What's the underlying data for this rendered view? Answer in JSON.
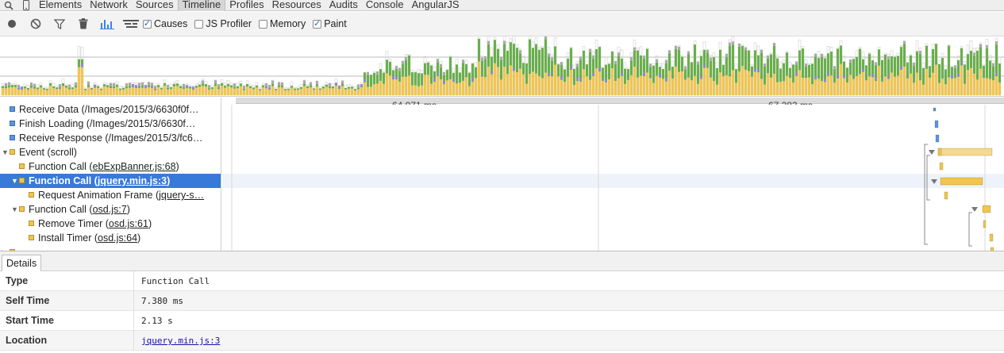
{
  "tabs": {
    "items": [
      "Elements",
      "Network",
      "Sources",
      "Timeline",
      "Profiles",
      "Resources",
      "Audits",
      "Console",
      "AngularJS"
    ],
    "active": "Timeline",
    "search_icon": "search-icon",
    "device_icon": "mobile-device-icon"
  },
  "toolbar": {
    "record_icon": "record-icon",
    "clear_icon": "clear-icon",
    "filter_icon": "filter-icon",
    "trash_icon": "trash-icon",
    "bars_view_icon": "bars-view-icon",
    "flame_view_icon": "flamechart-view-icon",
    "checkboxes": [
      {
        "label": "Causes",
        "checked": true
      },
      {
        "label": "JS Profiler",
        "checked": false
      },
      {
        "label": "Memory",
        "checked": false
      },
      {
        "label": "Paint",
        "checked": true
      }
    ]
  },
  "ruler": {
    "labels": [
      "64.071 ms",
      "67.283 ms"
    ]
  },
  "tree": {
    "rows": [
      {
        "text": "Receive Data (/Images/2015/3/6630f0f…",
        "depth": 0,
        "color": "#5a96e0",
        "triangle": "",
        "link": "",
        "selected": false
      },
      {
        "text": "Finish Loading (/Images/2015/3/6630f…",
        "depth": 0,
        "color": "#5a96e0",
        "triangle": "",
        "link": "",
        "selected": false
      },
      {
        "text": "Receive Response (/Images/2015/3/fc6…",
        "depth": 0,
        "color": "#5a96e0",
        "triangle": "",
        "link": "",
        "selected": false
      },
      {
        "text": "Event (scroll)",
        "depth": 0,
        "color": "#f3c54a",
        "triangle": "▼",
        "link": "",
        "selected": false
      },
      {
        "text": "Function Call (",
        "depth": 1,
        "color": "#f3c54a",
        "triangle": "",
        "link": "ebExpBanner.js:68",
        "selected": false
      },
      {
        "text": "Function Call (",
        "depth": 1,
        "color": "#f3c54a",
        "triangle": "▼",
        "link": "jquery.min.js:3",
        "selected": true
      },
      {
        "text": "Request Animation Frame (",
        "depth": 2,
        "color": "#f3c54a",
        "triangle": "",
        "link": "jquery-s…",
        "selected": false
      },
      {
        "text": "Function Call (",
        "depth": 1,
        "color": "#f3c54a",
        "triangle": "▼",
        "link": "osd.js:7",
        "selected": false
      },
      {
        "text": "Remove Timer (",
        "depth": 2,
        "color": "#f3c54a",
        "triangle": "",
        "link": "osd.js:61",
        "selected": false
      },
      {
        "text": "Install Timer (",
        "depth": 2,
        "color": "#f3c54a",
        "triangle": "",
        "link": "osd.js:64",
        "selected": false
      }
    ]
  },
  "details": {
    "tab": "Details",
    "rows": [
      {
        "key": "Type",
        "value": "Function Call",
        "link": false
      },
      {
        "key": "Self Time",
        "value": "7.380 ms",
        "link": false
      },
      {
        "key": "Start Time",
        "value": "2.13 s",
        "link": false
      },
      {
        "key": "Location",
        "value": "jquery.min.js:3",
        "link": true
      }
    ]
  },
  "colors": {
    "scripting": "#f3c54a",
    "rendering": "#9b7fe6",
    "painting": "#68b04a",
    "loading": "#5a96e0",
    "selected": "#3879d9"
  }
}
